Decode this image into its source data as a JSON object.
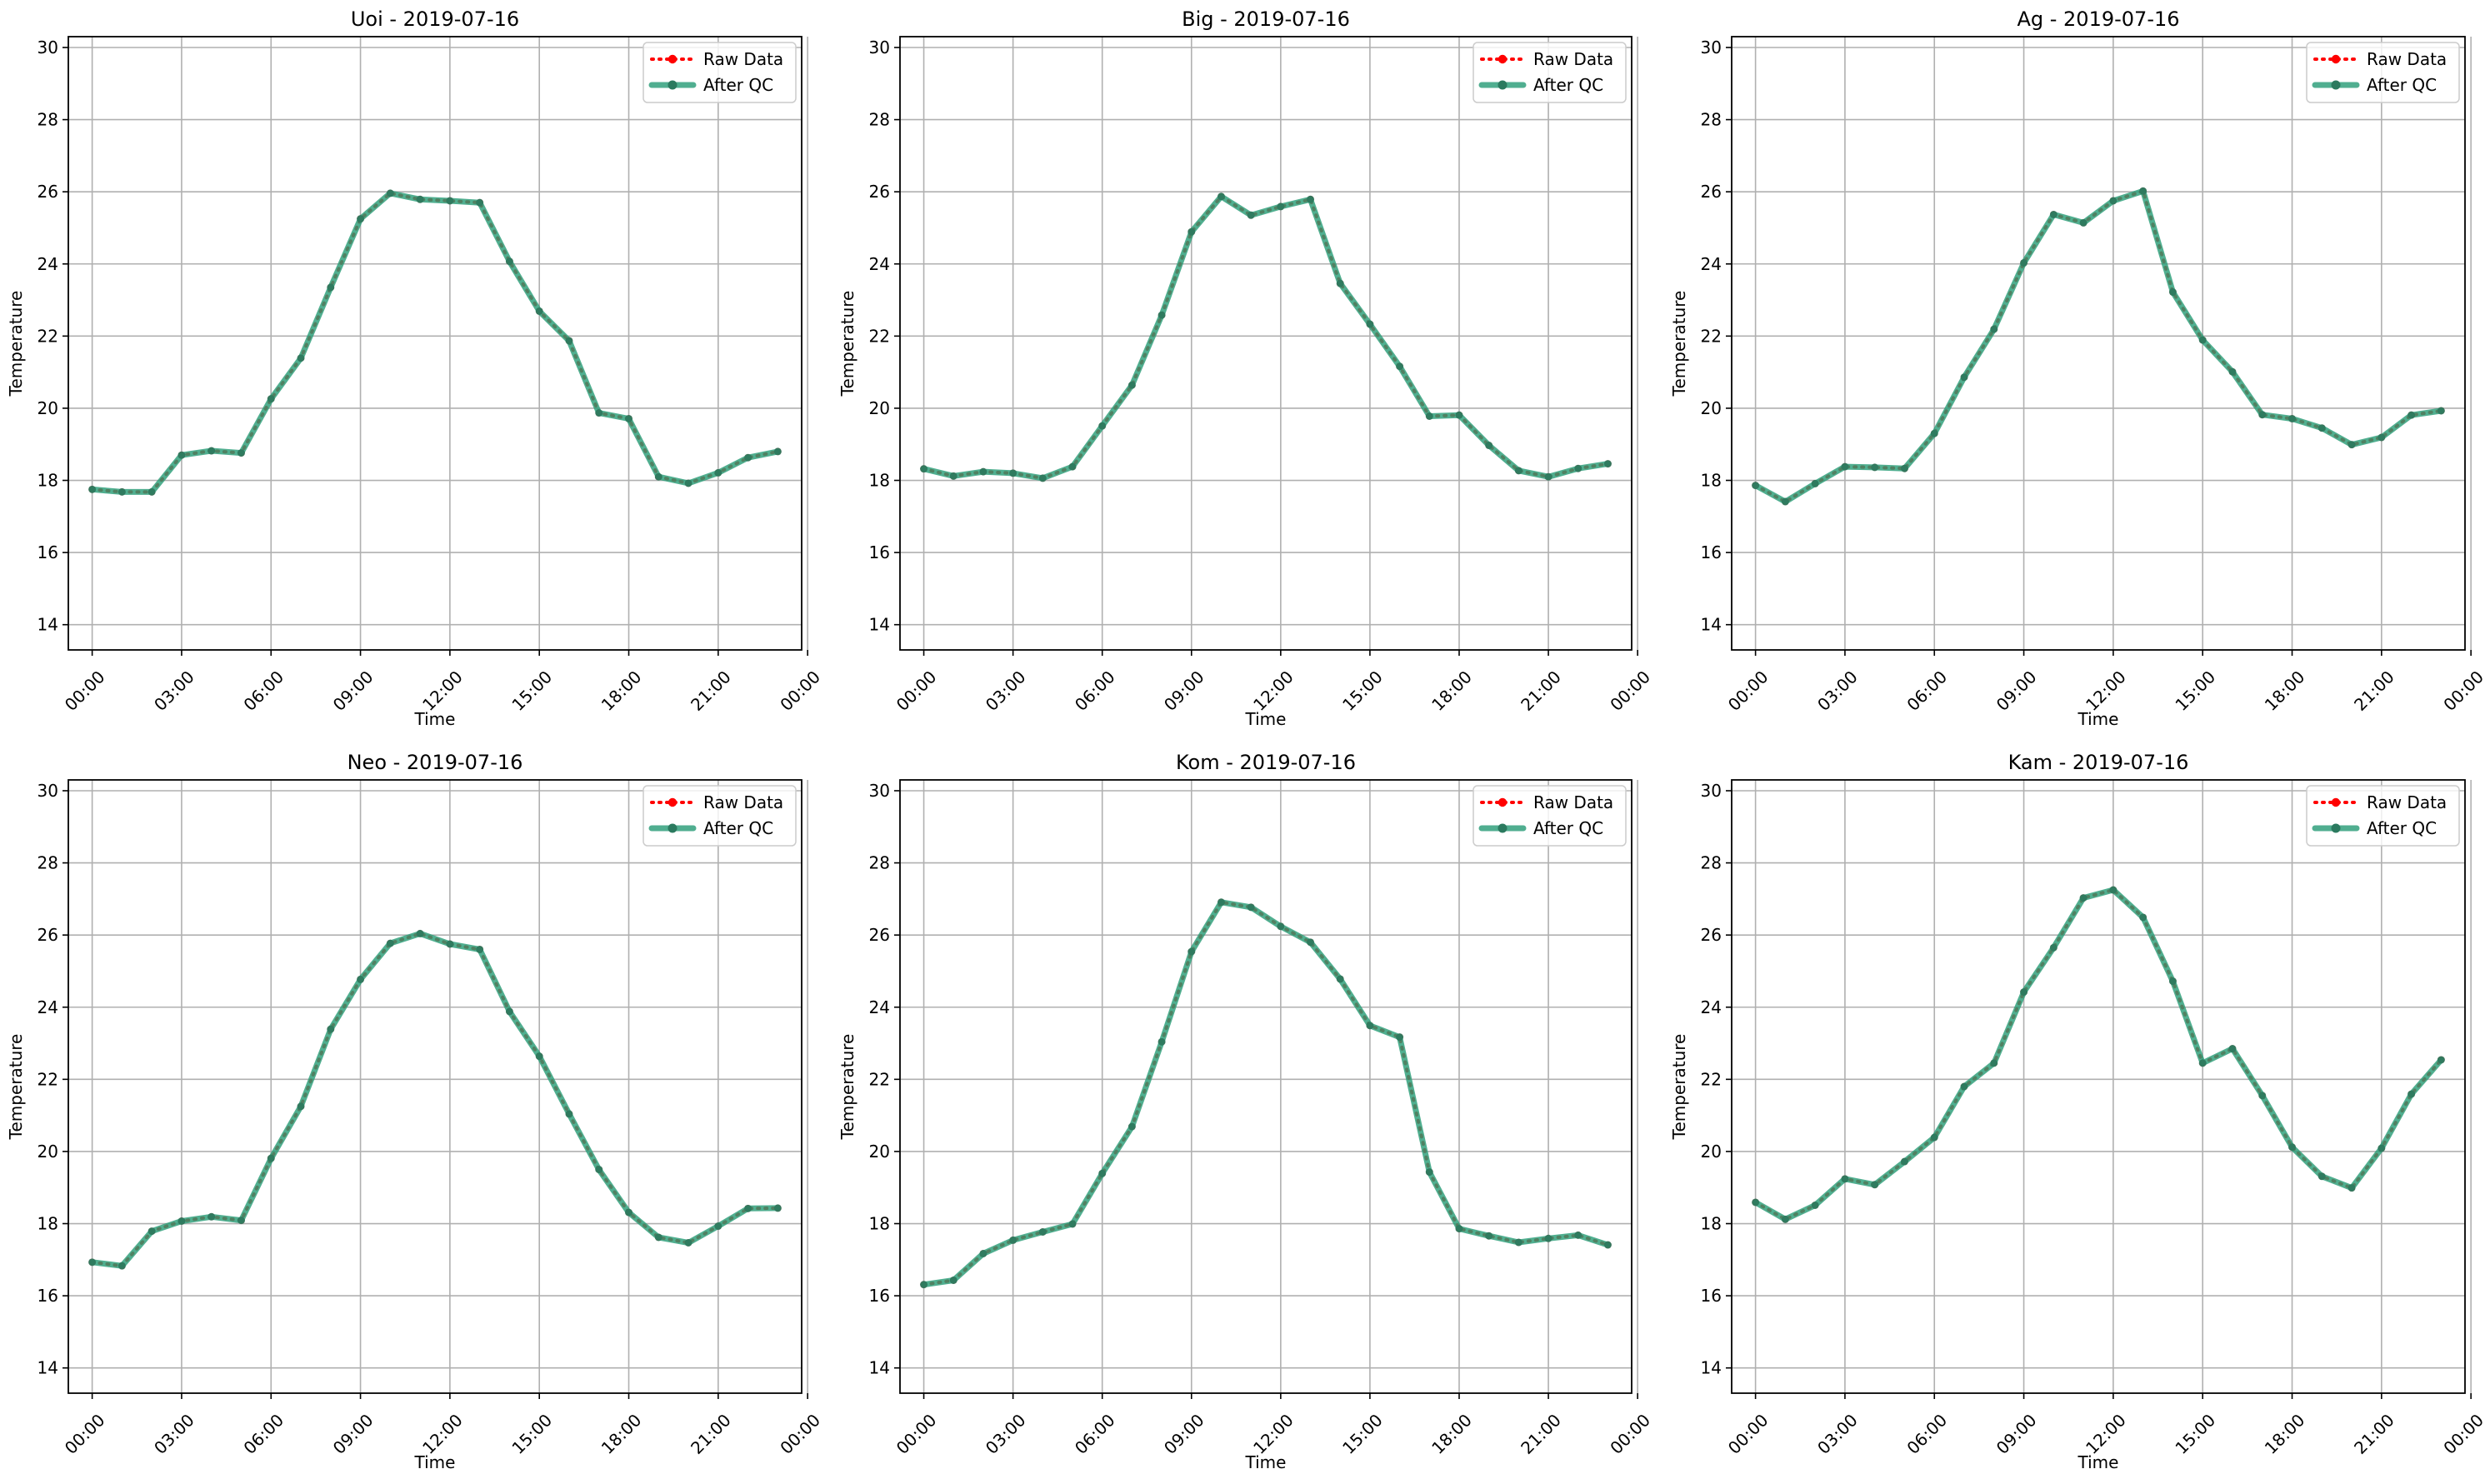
{
  "figure": {
    "background": "#ffffff",
    "legend_items": [
      {
        "label": "Raw Data",
        "color": "#ff0000",
        "style": "dotted-with-markers"
      },
      {
        "label": "After QC",
        "color": "#2a9d78",
        "style": "solid-with-markers"
      }
    ],
    "grid_color": "#b0b0b0",
    "axes_color": "#000000"
  },
  "chart_data": [
    {
      "type": "line",
      "title": "Uoi - 2019-07-16",
      "xlabel": "Time",
      "ylabel": "Temperature",
      "ylim": [
        13.3,
        30.3
      ],
      "xlim": [
        -0.8,
        23.8
      ],
      "yticks": [
        14,
        16,
        18,
        20,
        22,
        24,
        26,
        28,
        30
      ],
      "xtick_positions": [
        0,
        3,
        6,
        9,
        12,
        15,
        18,
        21,
        24
      ],
      "xtick_labels": [
        "00:00",
        "03:00",
        "06:00",
        "09:00",
        "12:00",
        "15:00",
        "18:00",
        "21:00",
        "00:00"
      ],
      "grid": true,
      "legend_position": "upper right",
      "x": [
        0,
        1,
        2,
        3,
        4,
        5,
        6,
        7,
        8,
        9,
        10,
        11,
        12,
        13,
        14,
        15,
        16,
        17,
        18,
        19,
        20,
        21,
        22,
        23
      ],
      "series": [
        {
          "name": "Raw Data",
          "values": [
            17.75,
            17.68,
            17.68,
            18.7,
            18.82,
            18.76,
            20.26,
            21.39,
            23.35,
            25.25,
            25.96,
            25.79,
            25.75,
            25.7,
            24.07,
            22.69,
            21.87,
            19.87,
            19.71,
            18.1,
            17.92,
            18.21,
            18.63,
            18.8
          ]
        },
        {
          "name": "After QC",
          "values": [
            17.75,
            17.68,
            17.68,
            18.7,
            18.82,
            18.76,
            20.26,
            21.39,
            23.35,
            25.25,
            25.96,
            25.79,
            25.75,
            25.7,
            24.07,
            22.69,
            21.87,
            19.87,
            19.71,
            18.1,
            17.92,
            18.21,
            18.63,
            18.8
          ]
        }
      ]
    },
    {
      "type": "line",
      "title": "Big - 2019-07-16",
      "xlabel": "Time",
      "ylabel": "Temperature",
      "ylim": [
        13.3,
        30.3
      ],
      "xlim": [
        -0.8,
        23.8
      ],
      "yticks": [
        14,
        16,
        18,
        20,
        22,
        24,
        26,
        28,
        30
      ],
      "xtick_positions": [
        0,
        3,
        6,
        9,
        12,
        15,
        18,
        21,
        24
      ],
      "xtick_labels": [
        "00:00",
        "03:00",
        "06:00",
        "09:00",
        "12:00",
        "15:00",
        "18:00",
        "21:00",
        "00:00"
      ],
      "grid": true,
      "legend_position": "upper right",
      "x": [
        0,
        1,
        2,
        3,
        4,
        5,
        6,
        7,
        8,
        9,
        10,
        11,
        12,
        13,
        14,
        15,
        16,
        17,
        18,
        19,
        20,
        21,
        22,
        23
      ],
      "series": [
        {
          "name": "Raw Data",
          "values": [
            18.32,
            18.12,
            18.24,
            18.2,
            18.06,
            18.38,
            19.51,
            20.64,
            22.58,
            24.89,
            25.87,
            25.35,
            25.59,
            25.79,
            23.46,
            22.33,
            21.16,
            19.78,
            19.81,
            18.97,
            18.27,
            18.1,
            18.33,
            18.46
          ]
        },
        {
          "name": "After QC",
          "values": [
            18.32,
            18.12,
            18.24,
            18.2,
            18.06,
            18.38,
            19.51,
            20.64,
            22.58,
            24.89,
            25.87,
            25.35,
            25.59,
            25.79,
            23.46,
            22.33,
            21.16,
            19.78,
            19.81,
            18.97,
            18.27,
            18.1,
            18.33,
            18.46
          ]
        }
      ]
    },
    {
      "type": "line",
      "title": "Ag - 2019-07-16",
      "xlabel": "Time",
      "ylabel": "Temperature",
      "ylim": [
        13.3,
        30.3
      ],
      "xlim": [
        -0.8,
        23.8
      ],
      "yticks": [
        14,
        16,
        18,
        20,
        22,
        24,
        26,
        28,
        30
      ],
      "xtick_positions": [
        0,
        3,
        6,
        9,
        12,
        15,
        18,
        21,
        24
      ],
      "xtick_labels": [
        "00:00",
        "03:00",
        "06:00",
        "09:00",
        "12:00",
        "15:00",
        "18:00",
        "21:00",
        "00:00"
      ],
      "grid": true,
      "legend_position": "upper right",
      "x": [
        0,
        1,
        2,
        3,
        4,
        5,
        6,
        7,
        8,
        9,
        10,
        11,
        12,
        13,
        14,
        15,
        16,
        17,
        18,
        19,
        20,
        21,
        22,
        23
      ],
      "series": [
        {
          "name": "Raw Data",
          "values": [
            17.86,
            17.41,
            17.91,
            18.38,
            18.36,
            18.33,
            19.3,
            20.86,
            22.19,
            24.03,
            25.37,
            25.14,
            25.75,
            26.02,
            23.22,
            21.89,
            21.01,
            19.82,
            19.71,
            19.45,
            18.99,
            19.19,
            19.81,
            19.93
          ]
        },
        {
          "name": "After QC",
          "values": [
            17.86,
            17.41,
            17.91,
            18.38,
            18.36,
            18.33,
            19.3,
            20.86,
            22.19,
            24.03,
            25.37,
            25.14,
            25.75,
            26.02,
            23.22,
            21.89,
            21.01,
            19.82,
            19.71,
            19.45,
            18.99,
            19.19,
            19.81,
            19.93
          ]
        }
      ]
    },
    {
      "type": "line",
      "title": "Neo - 2019-07-16",
      "xlabel": "Time",
      "ylabel": "Temperature",
      "ylim": [
        13.3,
        30.3
      ],
      "xlim": [
        -0.8,
        23.8
      ],
      "yticks": [
        14,
        16,
        18,
        20,
        22,
        24,
        26,
        28,
        30
      ],
      "xtick_positions": [
        0,
        3,
        6,
        9,
        12,
        15,
        18,
        21,
        24
      ],
      "xtick_labels": [
        "00:00",
        "03:00",
        "06:00",
        "09:00",
        "12:00",
        "15:00",
        "18:00",
        "21:00",
        "00:00"
      ],
      "grid": true,
      "legend_position": "upper right",
      "x": [
        0,
        1,
        2,
        3,
        4,
        5,
        6,
        7,
        8,
        9,
        10,
        11,
        12,
        13,
        14,
        15,
        16,
        17,
        18,
        19,
        20,
        21,
        22,
        23
      ],
      "series": [
        {
          "name": "Raw Data",
          "values": [
            16.93,
            16.83,
            17.79,
            18.07,
            18.19,
            18.09,
            19.81,
            21.25,
            23.39,
            24.77,
            25.77,
            26.04,
            25.75,
            25.6,
            23.88,
            22.64,
            21.04,
            19.5,
            18.31,
            17.62,
            17.47,
            17.93,
            18.42,
            18.43
          ]
        },
        {
          "name": "After QC",
          "values": [
            16.93,
            16.83,
            17.79,
            18.07,
            18.19,
            18.09,
            19.81,
            21.25,
            23.39,
            24.77,
            25.77,
            26.04,
            25.75,
            25.6,
            23.88,
            22.64,
            21.04,
            19.5,
            18.31,
            17.62,
            17.47,
            17.93,
            18.42,
            18.43
          ]
        }
      ]
    },
    {
      "type": "line",
      "title": "Kom - 2019-07-16",
      "xlabel": "Time",
      "ylabel": "Temperature",
      "ylim": [
        13.3,
        30.3
      ],
      "xlim": [
        -0.8,
        23.8
      ],
      "yticks": [
        14,
        16,
        18,
        20,
        22,
        24,
        26,
        28,
        30
      ],
      "xtick_positions": [
        0,
        3,
        6,
        9,
        12,
        15,
        18,
        21,
        24
      ],
      "xtick_labels": [
        "00:00",
        "03:00",
        "06:00",
        "09:00",
        "12:00",
        "15:00",
        "18:00",
        "21:00",
        "00:00"
      ],
      "grid": true,
      "legend_position": "upper right",
      "x": [
        0,
        1,
        2,
        3,
        4,
        5,
        6,
        7,
        8,
        9,
        10,
        11,
        12,
        13,
        14,
        15,
        16,
        17,
        18,
        19,
        20,
        21,
        22,
        23
      ],
      "series": [
        {
          "name": "Raw Data",
          "values": [
            16.31,
            16.43,
            17.17,
            17.54,
            17.77,
            17.99,
            19.39,
            20.69,
            23.04,
            25.54,
            26.91,
            26.77,
            26.24,
            25.8,
            24.78,
            23.49,
            23.17,
            19.43,
            17.86,
            17.66,
            17.48,
            17.59,
            17.68,
            17.41
          ]
        },
        {
          "name": "After QC",
          "values": [
            16.31,
            16.43,
            17.17,
            17.54,
            17.77,
            17.99,
            19.39,
            20.69,
            23.04,
            25.54,
            26.91,
            26.77,
            26.24,
            25.8,
            24.78,
            23.49,
            23.17,
            19.43,
            17.86,
            17.66,
            17.48,
            17.59,
            17.68,
            17.41
          ]
        }
      ]
    },
    {
      "type": "line",
      "title": "Kam - 2019-07-16",
      "xlabel": "Time",
      "ylabel": "Temperature",
      "ylim": [
        13.3,
        30.3
      ],
      "xlim": [
        -0.8,
        23.8
      ],
      "yticks": [
        14,
        16,
        18,
        20,
        22,
        24,
        26,
        28,
        30
      ],
      "xtick_positions": [
        0,
        3,
        6,
        9,
        12,
        15,
        18,
        21,
        24
      ],
      "xtick_labels": [
        "00:00",
        "03:00",
        "06:00",
        "09:00",
        "12:00",
        "15:00",
        "18:00",
        "21:00",
        "00:00"
      ],
      "grid": true,
      "legend_position": "upper right",
      "x": [
        0,
        1,
        2,
        3,
        4,
        5,
        6,
        7,
        8,
        9,
        10,
        11,
        12,
        13,
        14,
        15,
        16,
        17,
        18,
        19,
        20,
        21,
        22,
        23
      ],
      "series": [
        {
          "name": "Raw Data",
          "values": [
            18.59,
            18.12,
            18.51,
            19.24,
            19.08,
            19.72,
            20.39,
            21.8,
            22.45,
            24.42,
            25.65,
            27.03,
            27.25,
            26.49,
            24.72,
            22.45,
            22.85,
            21.55,
            20.12,
            19.31,
            18.99,
            20.09,
            21.59,
            22.54
          ]
        },
        {
          "name": "After QC",
          "values": [
            18.59,
            18.12,
            18.51,
            19.24,
            19.08,
            19.72,
            20.39,
            21.8,
            22.45,
            24.42,
            25.65,
            27.03,
            27.25,
            26.49,
            24.72,
            22.45,
            22.85,
            21.55,
            20.12,
            19.31,
            18.99,
            20.09,
            21.59,
            22.54
          ]
        }
      ]
    }
  ]
}
